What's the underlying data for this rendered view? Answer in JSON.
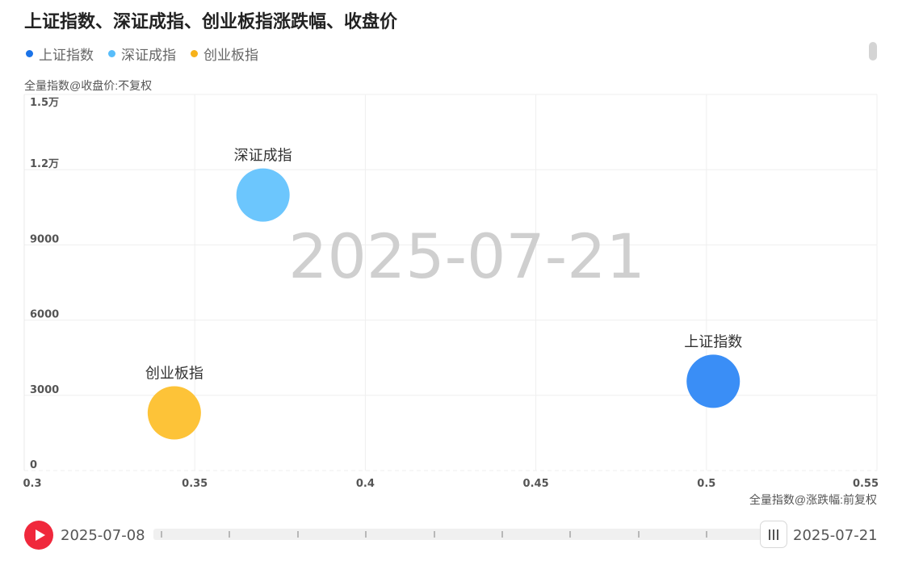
{
  "title": "上证指数、深证成指、创业板指涨跌幅、收盘价",
  "legend": [
    {
      "label": "上证指数",
      "color": "#1a73e8"
    },
    {
      "label": "深证成指",
      "color": "#58bdfa"
    },
    {
      "label": "创业板指",
      "color": "#f7b21a"
    }
  ],
  "y_axis_title": "全量指数@收盘价:不复权",
  "x_axis_title": "全量指数@涨跌幅:前复权",
  "watermark": "2025-07-21",
  "timeline": {
    "start": "2025-07-08",
    "end": "2025-07-21",
    "play_icon": "play-icon",
    "handle_icon": "drag-handle-icon"
  },
  "chart_data": {
    "type": "scatter",
    "title": "上证指数、深证成指、创业板指涨跌幅、收盘价",
    "xlabel": "全量指数@涨跌幅:前复权",
    "ylabel": "全量指数@收盘价:不复权",
    "xlim": [
      0.3,
      0.55
    ],
    "ylim": [
      0,
      15000
    ],
    "x_ticks": [
      "0.3",
      "0.35",
      "0.4",
      "0.45",
      "0.5",
      "0.55"
    ],
    "x_tick_values": [
      0.3,
      0.35,
      0.4,
      0.45,
      0.5,
      0.55
    ],
    "y_ticks": [
      "0",
      "3000",
      "6000",
      "9000",
      "1.2万",
      "1.5万"
    ],
    "y_tick_values": [
      0,
      3000,
      6000,
      9000,
      12000,
      15000
    ],
    "grid": true,
    "legend_position": "top-left",
    "series": [
      {
        "name": "上证指数",
        "x": 0.502,
        "y": 3560,
        "color": "#3a8ef6"
      },
      {
        "name": "深证成指",
        "x": 0.37,
        "y": 10990,
        "color": "#6cc6fd"
      },
      {
        "name": "创业板指",
        "x": 0.344,
        "y": 2300,
        "color": "#fdc338"
      }
    ]
  }
}
